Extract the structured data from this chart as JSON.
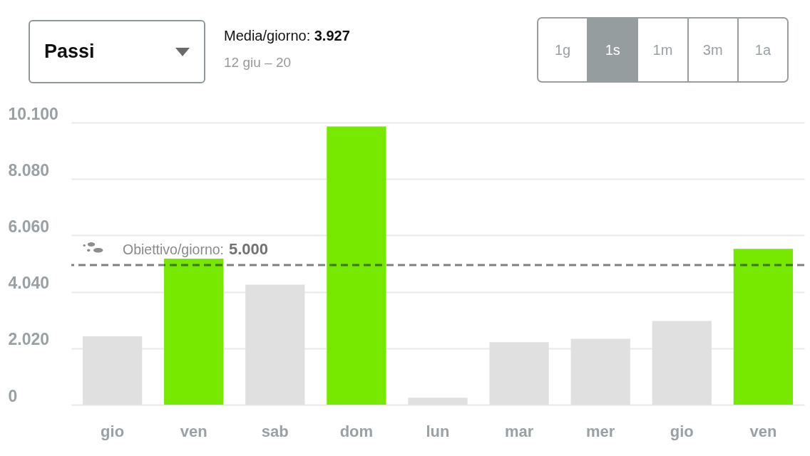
{
  "chart_data": {
    "type": "bar",
    "title": "Passi",
    "subtitle": "Media/giorno: 3.927",
    "annotations": [
      "12 giu – 20",
      "1g",
      "1s",
      "1m",
      "3m",
      "1a"
    ],
    "categories": [
      "gio",
      "ven",
      "sab",
      "dom",
      "lun",
      "mar",
      "mer",
      "gio",
      "ven"
    ],
    "values": [
      2450,
      5230,
      4300,
      9960,
      250,
      2240,
      2360,
      3000,
      5580
    ],
    "colors": [
      "#e0e0e0",
      "#77e800",
      "#e0e0e0",
      "#77e800",
      "#e0e0e0",
      "#e0e0e0",
      "#e0e0e0",
      "#e0e0e0",
      "#77e800"
    ],
    "ylim": [
      0,
      10100
    ],
    "yticks": [
      0,
      {
        "value": 2020,
        "label": "2.020"
      },
      {
        "value": 4040,
        "label": "4.040"
      },
      {
        "value": 6060,
        "label": "6.060"
      },
      {
        "value": 8080,
        "label": "8.080"
      },
      {
        "value": 10100,
        "label": "10.100"
      }
    ],
    "grid": "y",
    "ref_lines": [
      {
        "axis": "y",
        "value": 5000,
        "label": "Obiettivo/giorno: 5.000",
        "color": "#808080",
        "line_style": "dashed"
      }
    ]
  }
}
